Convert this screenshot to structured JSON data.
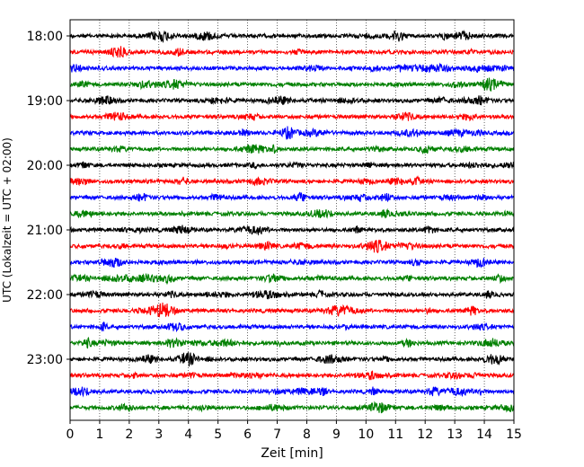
{
  "chart_data": {
    "type": "line",
    "title": "",
    "xlabel": "Zeit  [min]",
    "ylabel": "UTC (Lokalzeit = UTC + 02:00)",
    "xlim": [
      0,
      15
    ],
    "x_ticks": [
      0,
      1,
      2,
      3,
      4,
      5,
      6,
      7,
      8,
      9,
      10,
      11,
      12,
      13,
      14,
      15
    ],
    "x_tick_labels": [
      "0",
      "1",
      "2",
      "3",
      "4",
      "5",
      "6",
      "7",
      "8",
      "9",
      "10",
      "11",
      "12",
      "13",
      "14",
      "15"
    ],
    "y_tick_labels": [
      "18:00",
      "19:00",
      "20:00",
      "21:00",
      "22:00",
      "23:00"
    ],
    "vertical_grid": true,
    "grid_style": "dotted",
    "trace_interval_minutes": 15,
    "trace_colors": [
      "#000000",
      "#ff0000",
      "#0000ff",
      "#008000"
    ],
    "traces": [
      {
        "start": "18:00",
        "color": "#000000"
      },
      {
        "start": "18:15",
        "color": "#ff0000"
      },
      {
        "start": "18:30",
        "color": "#0000ff"
      },
      {
        "start": "18:45",
        "color": "#008000"
      },
      {
        "start": "19:00",
        "color": "#000000"
      },
      {
        "start": "19:15",
        "color": "#ff0000"
      },
      {
        "start": "19:30",
        "color": "#0000ff"
      },
      {
        "start": "19:45",
        "color": "#008000"
      },
      {
        "start": "20:00",
        "color": "#000000"
      },
      {
        "start": "20:15",
        "color": "#ff0000"
      },
      {
        "start": "20:30",
        "color": "#0000ff"
      },
      {
        "start": "20:45",
        "color": "#008000"
      },
      {
        "start": "21:00",
        "color": "#000000"
      },
      {
        "start": "21:15",
        "color": "#ff0000"
      },
      {
        "start": "21:30",
        "color": "#0000ff"
      },
      {
        "start": "21:45",
        "color": "#008000"
      },
      {
        "start": "22:00",
        "color": "#000000"
      },
      {
        "start": "22:15",
        "color": "#ff0000"
      },
      {
        "start": "22:30",
        "color": "#0000ff"
      },
      {
        "start": "22:45",
        "color": "#008000"
      },
      {
        "start": "23:00",
        "color": "#000000"
      },
      {
        "start": "23:15",
        "color": "#ff0000"
      },
      {
        "start": "23:30",
        "color": "#0000ff"
      },
      {
        "start": "23:45",
        "color": "#008000"
      }
    ]
  }
}
